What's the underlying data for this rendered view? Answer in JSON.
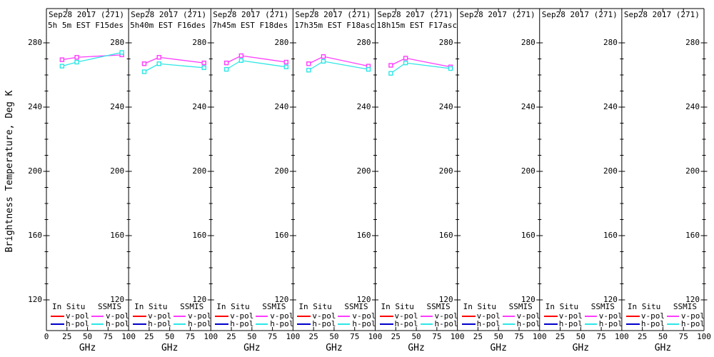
{
  "figure": {
    "background": "#ffffff",
    "axis_color": "#000000"
  },
  "y_axis": {
    "title": "Brightness Temperature, Deg K",
    "tick_labels": [
      "280",
      "240",
      "200",
      "160",
      "120"
    ],
    "major_step": 40,
    "minor_step": 10
  },
  "x_axis": {
    "label": "GHz",
    "tick_labels": [
      "0",
      "25",
      "50",
      "75",
      "100"
    ]
  },
  "legend": {
    "columns": [
      "In Situ",
      "SSMIS"
    ],
    "rows": [
      "v-pol",
      "h-pol"
    ],
    "colors": {
      "in_situ_v": "#ff0000",
      "in_situ_h": "#0000cc",
      "ssmis_v": "#ff3cff",
      "ssmis_h": "#2ee6e6"
    }
  },
  "chart_data": {
    "type": "line",
    "x": [
      19,
      37,
      91.7
    ],
    "xlim": [
      0,
      100
    ],
    "ylim": [
      120,
      280
    ],
    "xlabel": "GHz",
    "ylabel": "Brightness Temperature, Deg K",
    "marker": "open-square",
    "panels": [
      {
        "title": "Sep28 2017 (271)",
        "subtitle": "5h 5m EST F15des",
        "series": [
          {
            "name": "SSMIS v-pol",
            "color": "#ff3cff",
            "values": [
              269.5,
              271,
              272.5
            ]
          },
          {
            "name": "SSMIS h-pol",
            "color": "#2ee6e6",
            "values": [
              265.5,
              268,
              274
            ]
          }
        ]
      },
      {
        "title": "Sep28 2017 (271)",
        "subtitle": "5h40m EST F16des",
        "series": [
          {
            "name": "SSMIS v-pol",
            "color": "#ff3cff",
            "values": [
              267,
              271,
              267.5
            ]
          },
          {
            "name": "SSMIS h-pol",
            "color": "#2ee6e6",
            "values": [
              262,
              267,
              264.5
            ]
          }
        ]
      },
      {
        "title": "Sep28 2017 (271)",
        "subtitle": "7h45m EST F18des",
        "series": [
          {
            "name": "SSMIS v-pol",
            "color": "#ff3cff",
            "values": [
              267.5,
              272,
              268
            ]
          },
          {
            "name": "SSMIS h-pol",
            "color": "#2ee6e6",
            "values": [
              263.5,
              269,
              265
            ]
          }
        ]
      },
      {
        "title": "Sep28 2017 (271)",
        "subtitle": "17h35m EST F18asc",
        "series": [
          {
            "name": "SSMIS v-pol",
            "color": "#ff3cff",
            "values": [
              267,
              271.5,
              265.5
            ]
          },
          {
            "name": "SSMIS h-pol",
            "color": "#2ee6e6",
            "values": [
              263,
              268.5,
              263.5
            ]
          }
        ]
      },
      {
        "title": "Sep28 2017 (271)",
        "subtitle": "18h15m EST F17asc",
        "series": [
          {
            "name": "SSMIS v-pol",
            "color": "#ff3cff",
            "values": [
              266,
              270.5,
              265
            ]
          },
          {
            "name": "SSMIS h-pol",
            "color": "#2ee6e6",
            "values": [
              261,
              267.5,
              264
            ]
          }
        ]
      },
      {
        "title": "Sep28 2017 (271)",
        "subtitle": "",
        "series": []
      },
      {
        "title": "Sep28 2017 (271)",
        "subtitle": "",
        "series": []
      },
      {
        "title": "Sep28 2017 (271)",
        "subtitle": "",
        "series": []
      }
    ]
  }
}
